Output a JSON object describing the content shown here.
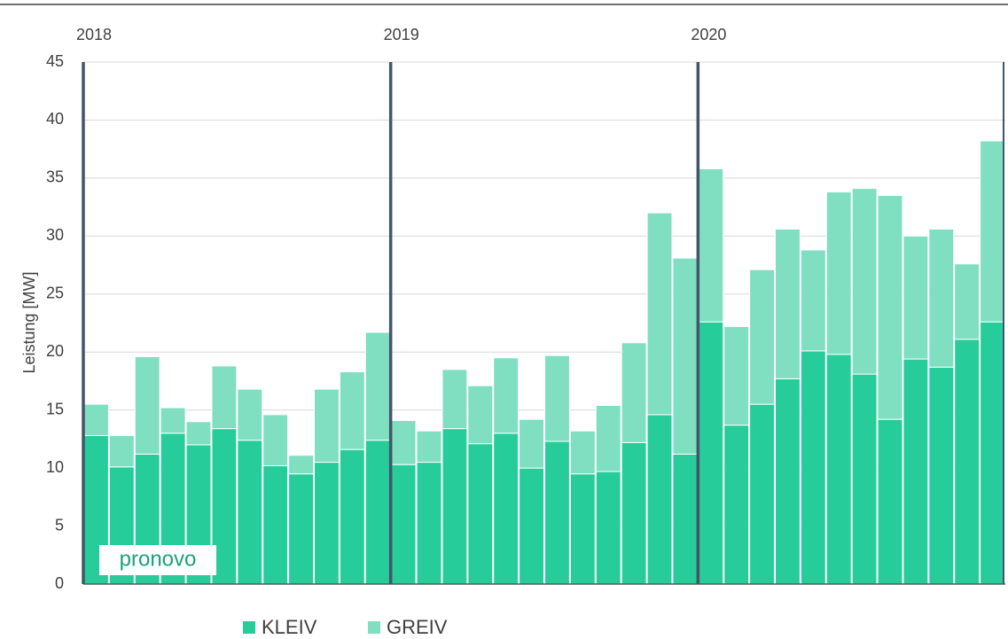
{
  "chart_data": {
    "type": "stacked_bar",
    "y_label": "Leistung [MW]",
    "categories": [
      "2018",
      null,
      null,
      null,
      null,
      null,
      null,
      null,
      null,
      null,
      null,
      null,
      "2019",
      null,
      null,
      null,
      null,
      null,
      null,
      null,
      null,
      null,
      null,
      null,
      "2020",
      null,
      null,
      null,
      null,
      null,
      null,
      null,
      null,
      null,
      null,
      null
    ],
    "series": [
      {
        "name": "KLEIV",
        "color": "#26cc99",
        "values": [
          12.8,
          10.1,
          11.2,
          13.0,
          12.0,
          13.4,
          12.4,
          10.2,
          9.5,
          10.5,
          11.6,
          12.4,
          10.3,
          10.5,
          13.4,
          12.1,
          13.0,
          10.0,
          12.3,
          9.5,
          9.7,
          12.2,
          14.6,
          11.2,
          22.6,
          13.7,
          15.5,
          17.7,
          20.1,
          19.8,
          18.1,
          14.2,
          19.4,
          18.7,
          21.1,
          22.6
        ]
      },
      {
        "name": "GREIV",
        "color": "#7fdfc0",
        "values": [
          2.7,
          2.7,
          8.4,
          2.2,
          2.0,
          5.4,
          4.4,
          4.4,
          1.6,
          6.3,
          6.7,
          9.3,
          3.8,
          2.7,
          5.1,
          5.0,
          6.5,
          4.2,
          7.4,
          3.7,
          5.7,
          8.6,
          17.4,
          16.9,
          13.2,
          8.5,
          11.6,
          12.9,
          8.7,
          14.0,
          16.0,
          19.3,
          10.6,
          11.9,
          6.5,
          15.6
        ]
      }
    ],
    "ylim": [
      0,
      45
    ],
    "yticks": [
      0,
      5,
      10,
      15,
      20,
      25,
      30,
      35,
      40,
      45
    ],
    "grid": true,
    "logo": "pronovo"
  }
}
